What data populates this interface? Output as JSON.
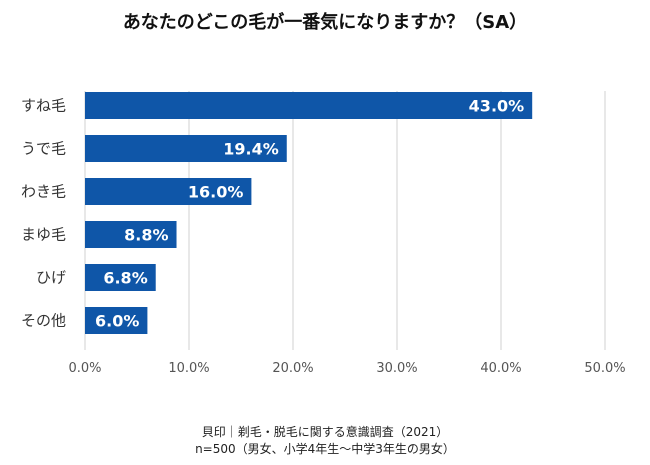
{
  "chart_data": {
    "type": "bar",
    "orientation": "horizontal",
    "title": "あなたのどこの毛が一番気になりますか？（SA）",
    "categories": [
      "すね毛",
      "うで毛",
      "わき毛",
      "まゆ毛",
      "ひげ",
      "その他"
    ],
    "values": [
      43.0,
      19.4,
      16.0,
      8.8,
      6.8,
      6.0
    ],
    "data_labels": [
      "43.0%",
      "19.4%",
      "16.0%",
      "8.8%",
      "6.8%",
      "6.0%"
    ],
    "x_ticks": [
      "0.0%",
      "10.0%",
      "20.0%",
      "30.0%",
      "40.0%",
      "50.0%"
    ],
    "xlim": [
      0,
      50
    ],
    "xlabel": "",
    "ylabel": "",
    "grid": true,
    "bar_color": "#0F56A8",
    "label_color": "#FFFFFF",
    "grid_color": "#D0D0D0"
  },
  "footnote": {
    "line1": "貝印｜剃毛・脱毛に関する意識調査（2021）",
    "line2": "n=500（男女、小学4年生～中学3年生の男女）"
  }
}
